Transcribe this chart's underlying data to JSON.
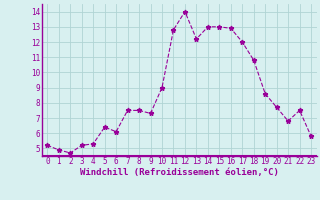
{
  "x": [
    0,
    1,
    2,
    3,
    4,
    5,
    6,
    7,
    8,
    9,
    10,
    11,
    12,
    13,
    14,
    15,
    16,
    17,
    18,
    19,
    20,
    21,
    22,
    23
  ],
  "y": [
    5.2,
    4.9,
    4.7,
    5.2,
    5.3,
    6.4,
    6.1,
    7.5,
    7.5,
    7.3,
    9.0,
    12.8,
    14.0,
    12.2,
    13.0,
    13.0,
    12.9,
    12.0,
    10.8,
    8.6,
    7.7,
    6.8,
    7.5,
    5.8
  ],
  "line_color": "#990099",
  "marker": "*",
  "marker_size": 3.5,
  "background_color": "#d8f0f0",
  "grid_color": "#b0d4d4",
  "xlabel": "Windchill (Refroidissement éolien,°C)",
  "xlim": [
    -0.5,
    23.5
  ],
  "ylim": [
    4.5,
    14.5
  ],
  "yticks": [
    5,
    6,
    7,
    8,
    9,
    10,
    11,
    12,
    13,
    14
  ],
  "xticks": [
    0,
    1,
    2,
    3,
    4,
    5,
    6,
    7,
    8,
    9,
    10,
    11,
    12,
    13,
    14,
    15,
    16,
    17,
    18,
    19,
    20,
    21,
    22,
    23
  ],
  "tick_fontsize": 5.5,
  "xlabel_fontsize": 6.5,
  "xlabel_fontweight": "bold"
}
